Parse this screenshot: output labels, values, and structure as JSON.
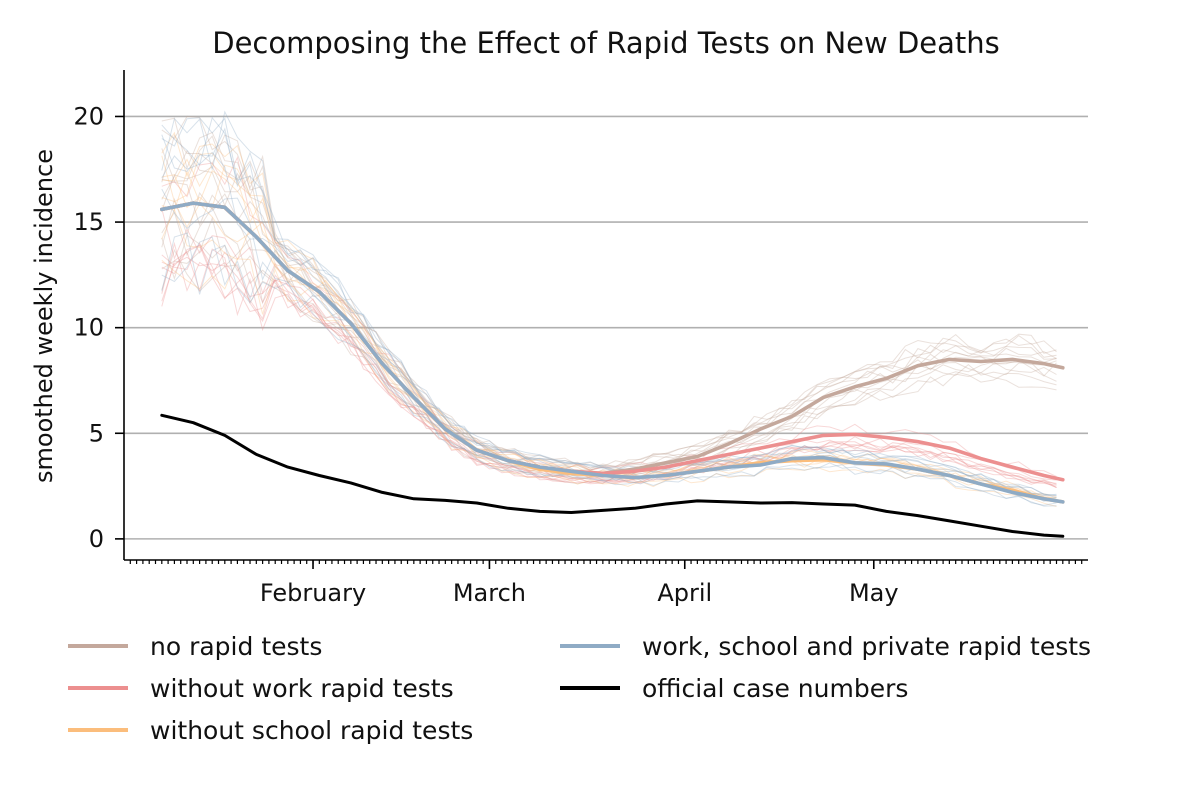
{
  "chart_data": {
    "type": "line",
    "title": "Decomposing the Effect of Rapid Tests on New Deaths",
    "xlabel": "",
    "ylabel": "smoothed weekly incidence",
    "x_start": "2021-01-08",
    "x_end": "2021-05-31",
    "xlim": [
      "2021-01-02",
      "2021-06-04"
    ],
    "ylim": [
      -1,
      22.2
    ],
    "yticks": [
      0,
      5,
      10,
      15,
      20
    ],
    "xticks": [
      {
        "date": "2021-02-01",
        "label": "February"
      },
      {
        "date": "2021-03-01",
        "label": "March"
      },
      {
        "date": "2021-04-01",
        "label": "April"
      },
      {
        "date": "2021-05-01",
        "label": "May"
      }
    ],
    "grid": "horizontal",
    "legend_position": "bottom",
    "series": [
      {
        "name": "no rapid tests",
        "color": "#c4a89c",
        "points": [
          [
            "2021-01-08",
            15.6
          ],
          [
            "2021-01-13",
            15.9
          ],
          [
            "2021-01-18",
            15.7
          ],
          [
            "2021-01-23",
            14.3
          ],
          [
            "2021-01-28",
            12.7
          ],
          [
            "2021-02-02",
            11.7
          ],
          [
            "2021-02-07",
            10.2
          ],
          [
            "2021-02-12",
            8.3
          ],
          [
            "2021-02-17",
            6.7
          ],
          [
            "2021-02-22",
            5.2
          ],
          [
            "2021-02-27",
            4.2
          ],
          [
            "2021-03-04",
            3.7
          ],
          [
            "2021-03-09",
            3.4
          ],
          [
            "2021-03-14",
            3.2
          ],
          [
            "2021-03-19",
            3.1
          ],
          [
            "2021-03-24",
            3.3
          ],
          [
            "2021-03-29",
            3.6
          ],
          [
            "2021-04-03",
            3.9
          ],
          [
            "2021-04-08",
            4.5
          ],
          [
            "2021-04-13",
            5.2
          ],
          [
            "2021-04-18",
            5.8
          ],
          [
            "2021-04-23",
            6.7
          ],
          [
            "2021-04-28",
            7.2
          ],
          [
            "2021-05-03",
            7.6
          ],
          [
            "2021-05-08",
            8.2
          ],
          [
            "2021-05-13",
            8.5
          ],
          [
            "2021-05-18",
            8.4
          ],
          [
            "2021-05-23",
            8.5
          ],
          [
            "2021-05-28",
            8.3
          ],
          [
            "2021-05-31",
            8.1
          ]
        ]
      },
      {
        "name": "without work rapid tests",
        "color": "#ec8f8f",
        "points": [
          [
            "2021-01-08",
            15.6
          ],
          [
            "2021-01-13",
            15.9
          ],
          [
            "2021-01-18",
            15.7
          ],
          [
            "2021-01-23",
            14.3
          ],
          [
            "2021-01-28",
            12.7
          ],
          [
            "2021-02-02",
            11.7
          ],
          [
            "2021-02-07",
            10.2
          ],
          [
            "2021-02-12",
            8.3
          ],
          [
            "2021-02-17",
            6.7
          ],
          [
            "2021-02-22",
            5.2
          ],
          [
            "2021-02-27",
            4.2
          ],
          [
            "2021-03-04",
            3.7
          ],
          [
            "2021-03-09",
            3.4
          ],
          [
            "2021-03-14",
            3.2
          ],
          [
            "2021-03-19",
            3.1
          ],
          [
            "2021-03-24",
            3.2
          ],
          [
            "2021-03-29",
            3.4
          ],
          [
            "2021-04-03",
            3.7
          ],
          [
            "2021-04-08",
            4.0
          ],
          [
            "2021-04-13",
            4.3
          ],
          [
            "2021-04-18",
            4.6
          ],
          [
            "2021-04-23",
            4.9
          ],
          [
            "2021-04-28",
            4.95
          ],
          [
            "2021-05-03",
            4.8
          ],
          [
            "2021-05-08",
            4.6
          ],
          [
            "2021-05-13",
            4.3
          ],
          [
            "2021-05-18",
            3.8
          ],
          [
            "2021-05-23",
            3.4
          ],
          [
            "2021-05-28",
            3.0
          ],
          [
            "2021-05-31",
            2.8
          ]
        ]
      },
      {
        "name": "without school rapid tests",
        "color": "#fbbd7c",
        "points": [
          [
            "2021-01-08",
            15.6
          ],
          [
            "2021-01-13",
            15.9
          ],
          [
            "2021-01-18",
            15.7
          ],
          [
            "2021-01-23",
            14.3
          ],
          [
            "2021-01-28",
            12.7
          ],
          [
            "2021-02-02",
            11.7
          ],
          [
            "2021-02-07",
            10.2
          ],
          [
            "2021-02-12",
            8.3
          ],
          [
            "2021-02-17",
            6.7
          ],
          [
            "2021-02-22",
            5.2
          ],
          [
            "2021-02-27",
            4.2
          ],
          [
            "2021-03-04",
            3.7
          ],
          [
            "2021-03-09",
            3.3
          ],
          [
            "2021-03-14",
            3.1
          ],
          [
            "2021-03-19",
            3.0
          ],
          [
            "2021-03-24",
            2.9
          ],
          [
            "2021-03-29",
            3.0
          ],
          [
            "2021-04-03",
            3.2
          ],
          [
            "2021-04-08",
            3.4
          ],
          [
            "2021-04-13",
            3.6
          ],
          [
            "2021-04-18",
            3.7
          ],
          [
            "2021-04-23",
            3.75
          ],
          [
            "2021-04-28",
            3.6
          ],
          [
            "2021-05-03",
            3.5
          ],
          [
            "2021-05-08",
            3.3
          ],
          [
            "2021-05-13",
            3.0
          ],
          [
            "2021-05-18",
            2.6
          ],
          [
            "2021-05-23",
            2.3
          ],
          [
            "2021-05-28",
            1.9
          ],
          [
            "2021-05-31",
            1.75
          ]
        ]
      },
      {
        "name": "work, school and private rapid tests",
        "color": "#8fabc5",
        "points": [
          [
            "2021-01-08",
            15.6
          ],
          [
            "2021-01-13",
            15.9
          ],
          [
            "2021-01-18",
            15.7
          ],
          [
            "2021-01-23",
            14.3
          ],
          [
            "2021-01-28",
            12.7
          ],
          [
            "2021-02-02",
            11.7
          ],
          [
            "2021-02-07",
            10.2
          ],
          [
            "2021-02-12",
            8.3
          ],
          [
            "2021-02-17",
            6.7
          ],
          [
            "2021-02-22",
            5.2
          ],
          [
            "2021-02-27",
            4.2
          ],
          [
            "2021-03-04",
            3.7
          ],
          [
            "2021-03-09",
            3.4
          ],
          [
            "2021-03-14",
            3.2
          ],
          [
            "2021-03-19",
            3.0
          ],
          [
            "2021-03-24",
            2.9
          ],
          [
            "2021-03-29",
            3.0
          ],
          [
            "2021-04-03",
            3.2
          ],
          [
            "2021-04-08",
            3.4
          ],
          [
            "2021-04-13",
            3.5
          ],
          [
            "2021-04-18",
            3.8
          ],
          [
            "2021-04-23",
            3.85
          ],
          [
            "2021-04-28",
            3.6
          ],
          [
            "2021-05-03",
            3.55
          ],
          [
            "2021-05-08",
            3.3
          ],
          [
            "2021-05-13",
            3.0
          ],
          [
            "2021-05-18",
            2.6
          ],
          [
            "2021-05-23",
            2.2
          ],
          [
            "2021-05-28",
            1.9
          ],
          [
            "2021-05-31",
            1.75
          ]
        ]
      },
      {
        "name": "official case numbers",
        "color": "#000000",
        "points": [
          [
            "2021-01-08",
            5.85
          ],
          [
            "2021-01-13",
            5.5
          ],
          [
            "2021-01-18",
            4.9
          ],
          [
            "2021-01-23",
            4.0
          ],
          [
            "2021-01-28",
            3.4
          ],
          [
            "2021-02-02",
            3.0
          ],
          [
            "2021-02-07",
            2.65
          ],
          [
            "2021-02-12",
            2.2
          ],
          [
            "2021-02-17",
            1.9
          ],
          [
            "2021-02-22",
            1.82
          ],
          [
            "2021-02-27",
            1.7
          ],
          [
            "2021-03-04",
            1.45
          ],
          [
            "2021-03-09",
            1.3
          ],
          [
            "2021-03-14",
            1.25
          ],
          [
            "2021-03-19",
            1.35
          ],
          [
            "2021-03-24",
            1.45
          ],
          [
            "2021-03-29",
            1.65
          ],
          [
            "2021-04-03",
            1.8
          ],
          [
            "2021-04-08",
            1.75
          ],
          [
            "2021-04-13",
            1.7
          ],
          [
            "2021-04-18",
            1.72
          ],
          [
            "2021-04-23",
            1.65
          ],
          [
            "2021-04-28",
            1.6
          ],
          [
            "2021-05-03",
            1.3
          ],
          [
            "2021-05-08",
            1.1
          ],
          [
            "2021-05-13",
            0.85
          ],
          [
            "2021-05-18",
            0.6
          ],
          [
            "2021-05-23",
            0.35
          ],
          [
            "2021-05-28",
            0.18
          ],
          [
            "2021-05-31",
            0.12
          ]
        ]
      }
    ]
  },
  "legend": {
    "items": [
      {
        "label": "no rapid tests",
        "color": "#c4a89c"
      },
      {
        "label": "without work rapid tests",
        "color": "#ec8f8f"
      },
      {
        "label": "without school rapid tests",
        "color": "#fbbd7c"
      },
      {
        "label": "work, school and private rapid tests",
        "color": "#8fabc5"
      },
      {
        "label": "official case numbers",
        "color": "#000000"
      }
    ]
  }
}
